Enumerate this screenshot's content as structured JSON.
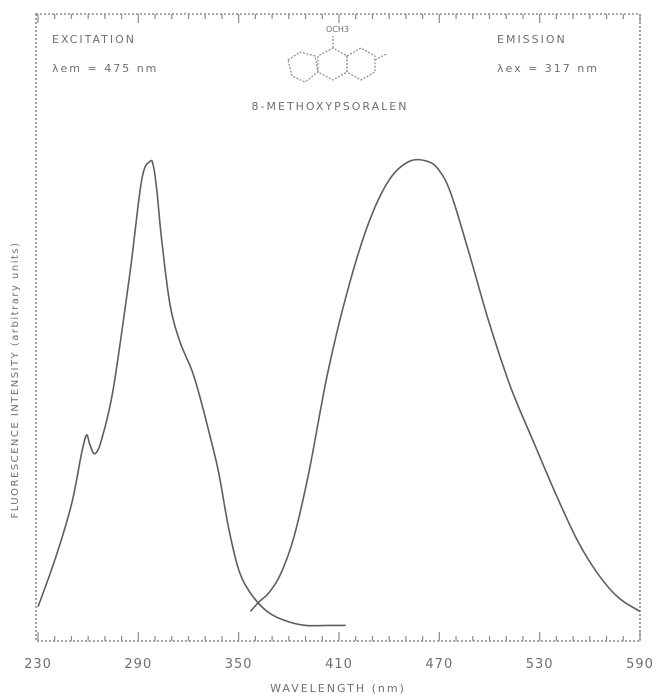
{
  "chart_data": {
    "type": "line",
    "xlabel": "WAVELENGTH (nm)",
    "ylabel": "FLUORESCENCE INTENSITY (arbitrary units)",
    "xlim": [
      230,
      590
    ],
    "ylim": [
      0,
      100
    ],
    "x_ticks": [
      "230",
      "290",
      "350",
      "410",
      "470",
      "530",
      "590"
    ],
    "x_tick_values": [
      230,
      290,
      350,
      410,
      470,
      530,
      590
    ],
    "grid": false,
    "series": [
      {
        "name": "EXCITATION",
        "color": "#5e5e5e",
        "x": [
          230,
          240,
          250,
          256,
          259,
          261,
          264,
          268,
          275,
          285,
          292,
          297,
          299,
          301,
          304,
          309,
          315,
          322,
          327,
          332,
          338,
          344,
          350,
          357,
          367,
          378,
          390,
          403,
          414
        ],
        "y": [
          5,
          15,
          27,
          38,
          42,
          40,
          38,
          41,
          52,
          77,
          97,
          101,
          100,
          95,
          84,
          70,
          62,
          56,
          50,
          43,
          34,
          22,
          13,
          8,
          4,
          2,
          1,
          1,
          1
        ]
      },
      {
        "name": "EMISSION",
        "color": "#5e5e5e",
        "x": [
          357,
          362,
          368,
          375,
          383,
          392,
          403,
          415,
          428,
          440,
          452,
          463,
          470,
          477,
          488,
          500,
          513,
          527,
          540,
          553,
          565,
          577,
          590
        ],
        "y": [
          4,
          6,
          8,
          12,
          20,
          34,
          55,
          73,
          88,
          97,
          101,
          101,
          99,
          94,
          81,
          66,
          52,
          40,
          29,
          19,
          12,
          7,
          4
        ]
      }
    ],
    "annotations": {
      "compound": "8-METHOXYPSORALEN",
      "substituent": "OCH3",
      "excitation_title": "EXCITATION",
      "excitation_param": "λem = 475 nm",
      "emission_title": "EMISSION",
      "emission_param": "λex = 317 nm"
    }
  }
}
